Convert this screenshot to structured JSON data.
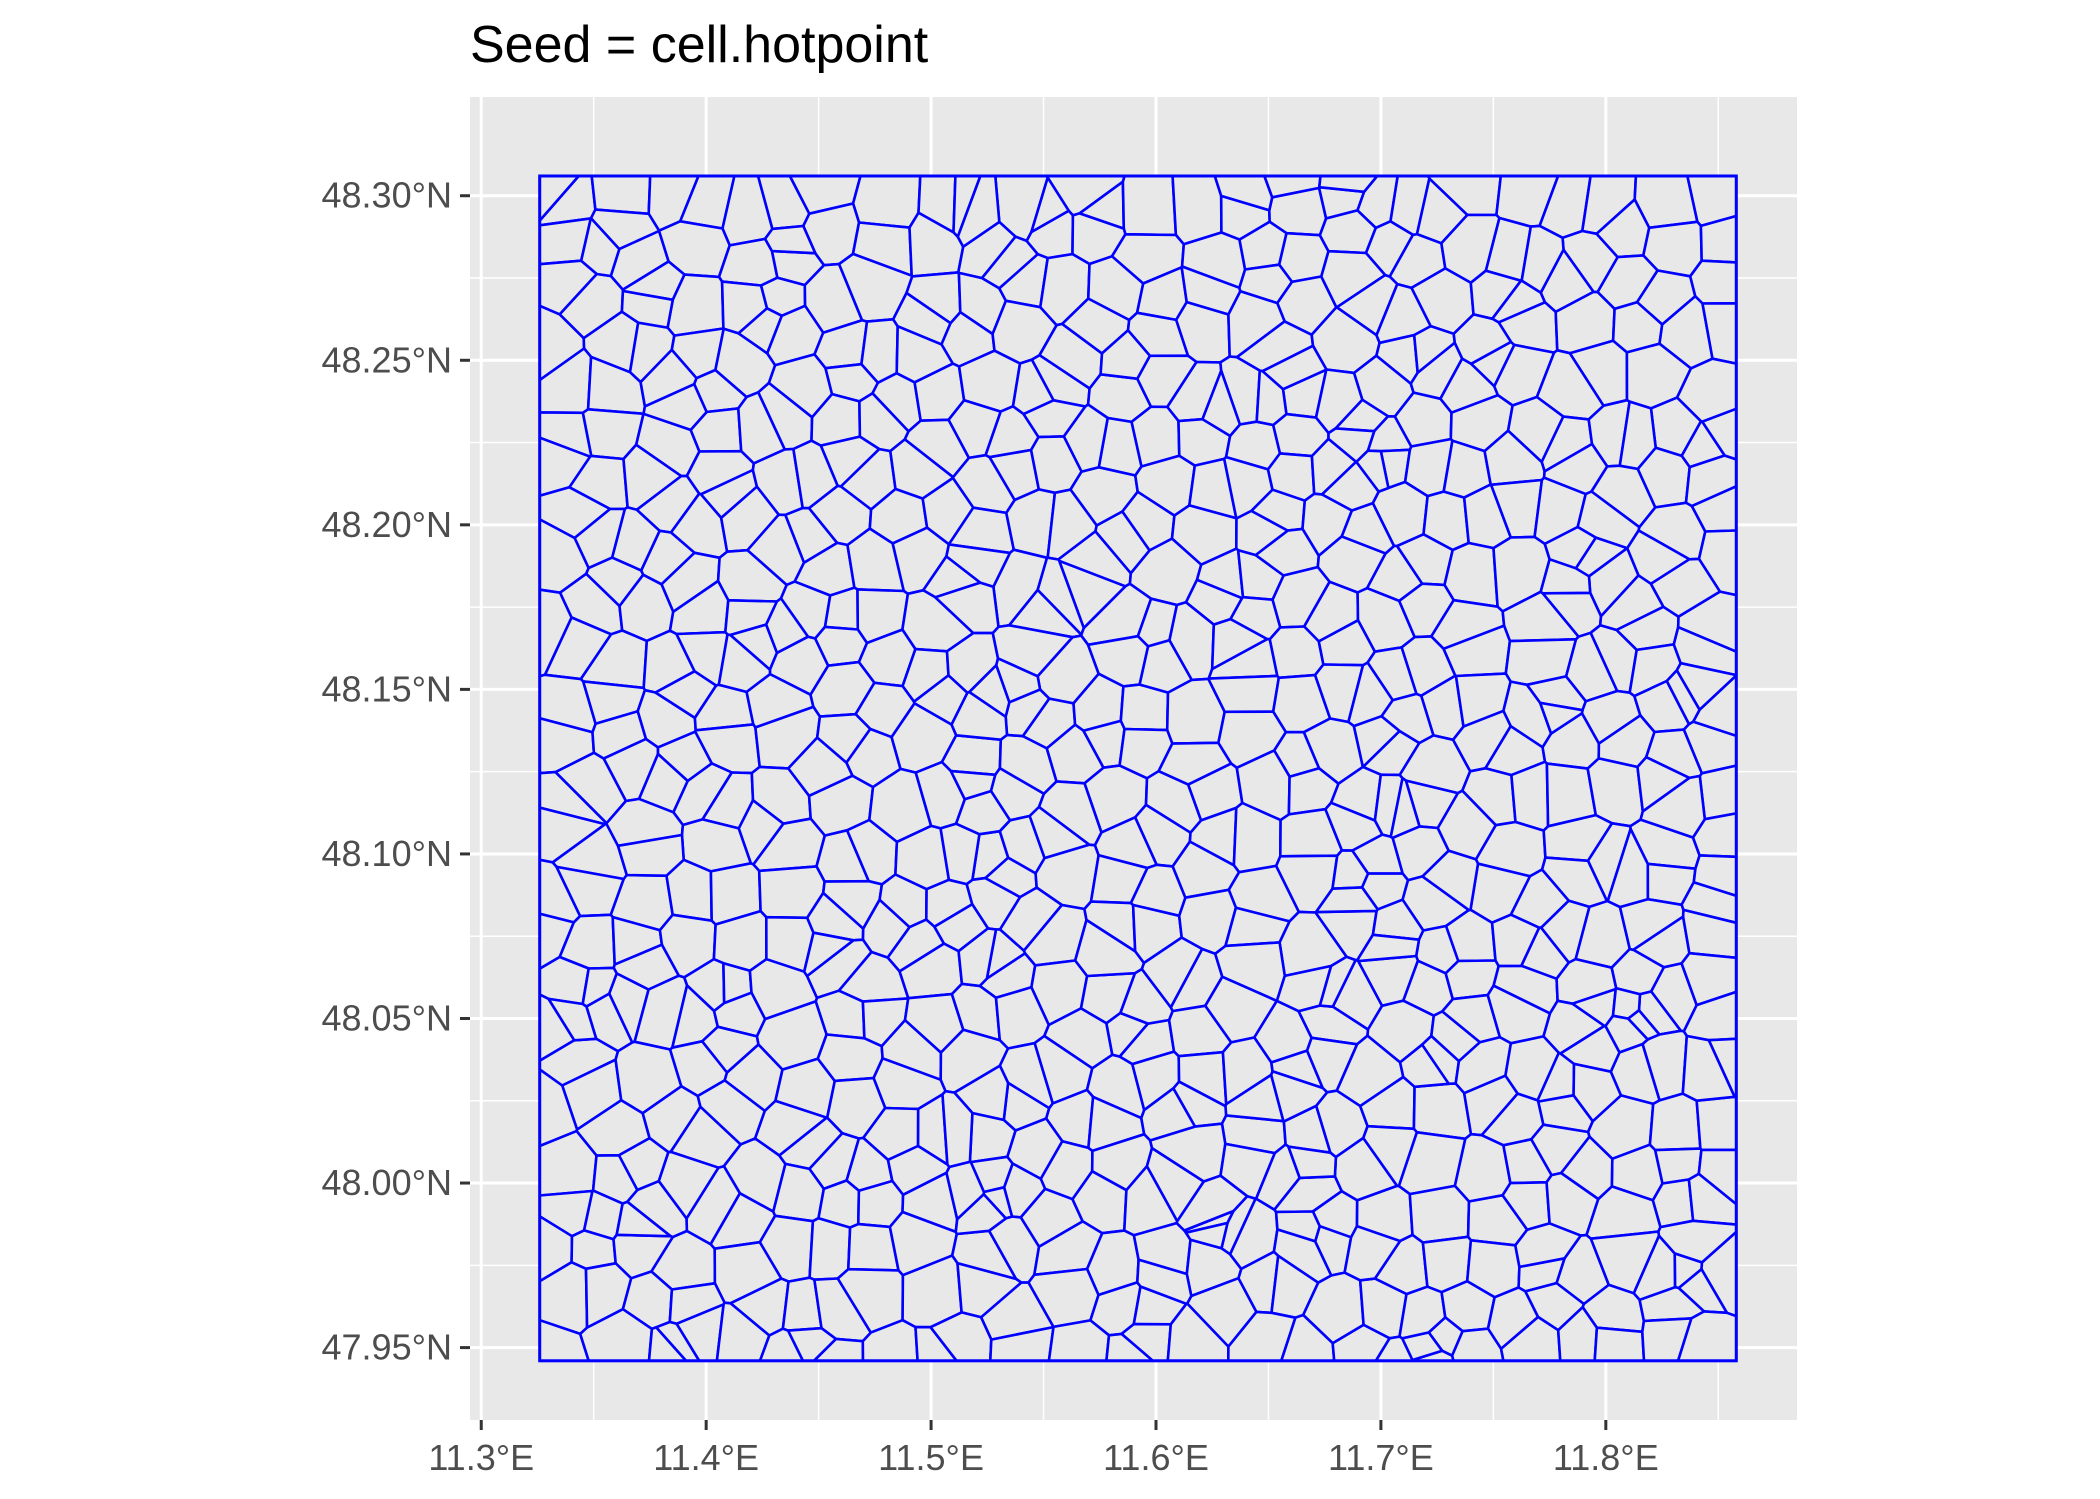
{
  "chart_data": {
    "type": "map",
    "title": "Seed = cell.hotpoint",
    "xlabel": "",
    "ylabel": "",
    "x_ticks": [
      {
        "value": 11.3,
        "label": "11.3°E"
      },
      {
        "value": 11.4,
        "label": "11.4°E"
      },
      {
        "value": 11.5,
        "label": "11.5°E"
      },
      {
        "value": 11.6,
        "label": "11.6°E"
      },
      {
        "value": 11.7,
        "label": "11.7°E"
      },
      {
        "value": 11.8,
        "label": "11.8°E"
      }
    ],
    "y_ticks": [
      {
        "value": 47.95,
        "label": "47.95°N"
      },
      {
        "value": 48.0,
        "label": "48.00°N"
      },
      {
        "value": 48.05,
        "label": "48.05°N"
      },
      {
        "value": 48.1,
        "label": "48.10°N"
      },
      {
        "value": 48.15,
        "label": "48.15°N"
      },
      {
        "value": 48.2,
        "label": "48.20°N"
      },
      {
        "value": 48.25,
        "label": "48.25°N"
      },
      {
        "value": 48.3,
        "label": "48.30°N"
      }
    ],
    "xlim": [
      11.295,
      11.885
    ],
    "ylim": [
      47.928,
      48.33
    ],
    "grid": true,
    "extent": {
      "xmin": 11.326,
      "xmax": 11.858,
      "ymin": 47.946,
      "ymax": 48.306
    },
    "colors": {
      "panel_background": "#e8e8e8",
      "grid": "#ffffff",
      "cell_outline": "#0000ff",
      "cell_fill": "#e8e8e8"
    }
  }
}
